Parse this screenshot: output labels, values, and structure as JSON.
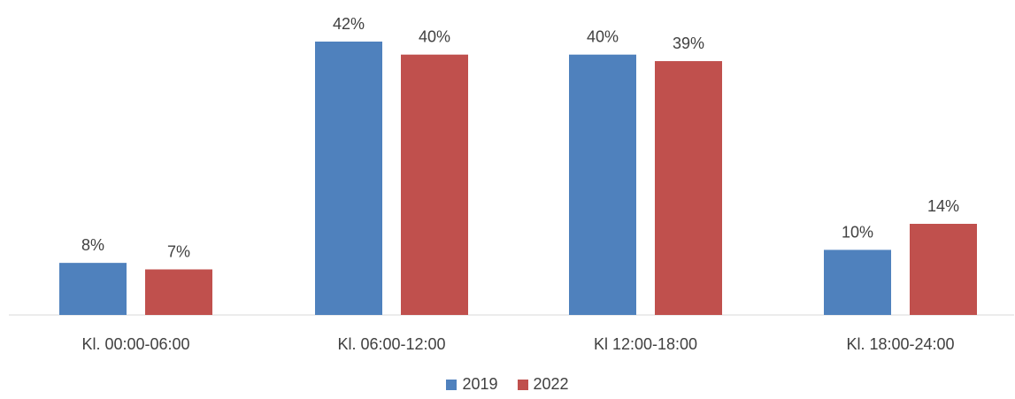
{
  "chart_data": {
    "type": "bar",
    "categories": [
      "Kl. 00:00-06:00",
      "Kl. 06:00-12:00",
      "Kl 12:00-18:00",
      "Kl. 18:00-24:00"
    ],
    "series": [
      {
        "name": "2019",
        "values": [
          8,
          42,
          40,
          10
        ],
        "labels": [
          "8%",
          "42%",
          "40%",
          "10%"
        ],
        "color": "#4F81BD"
      },
      {
        "name": "2022",
        "values": [
          7,
          40,
          39,
          14
        ],
        "labels": [
          "7%",
          "40%",
          "39%",
          "14%"
        ],
        "color": "#C0504D"
      }
    ],
    "ylim": [
      0,
      42
    ],
    "grid": false,
    "legend_position": "bottom"
  }
}
